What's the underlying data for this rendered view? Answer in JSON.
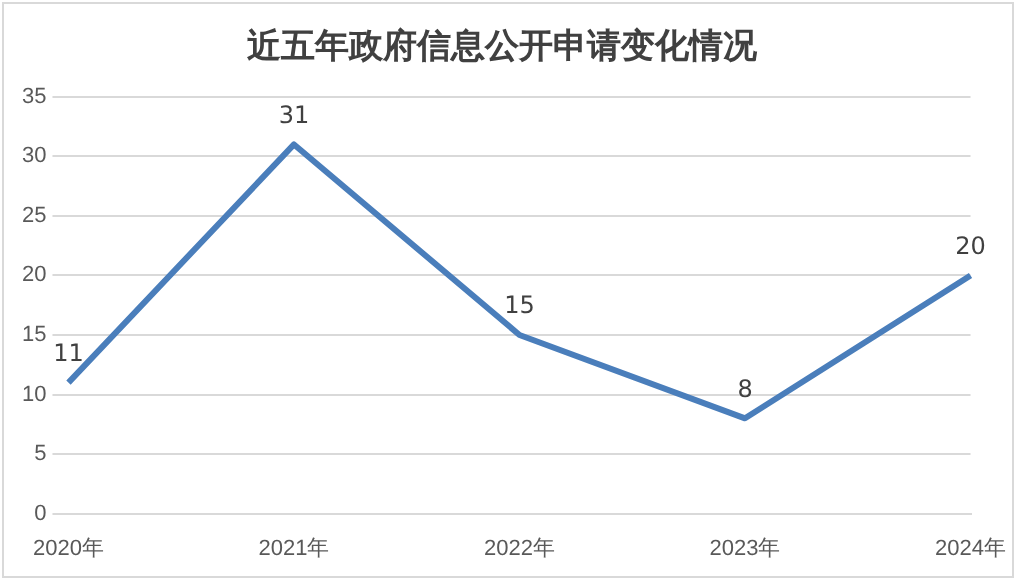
{
  "chart_data": {
    "type": "line",
    "title": "近五年政府信息公开申请变化情况",
    "categories": [
      "2020年",
      "2021年",
      "2022年",
      "2023年",
      "2024年"
    ],
    "series": [
      {
        "color": "#4a7ebb",
        "values": [
          11,
          31,
          15,
          8,
          20
        ]
      }
    ],
    "ylim": [
      0,
      35
    ],
    "yticks": [
      0,
      5,
      10,
      15,
      20,
      25,
      30,
      35
    ],
    "grid": "y",
    "legend": false,
    "marker": "none",
    "data_labels": true
  }
}
